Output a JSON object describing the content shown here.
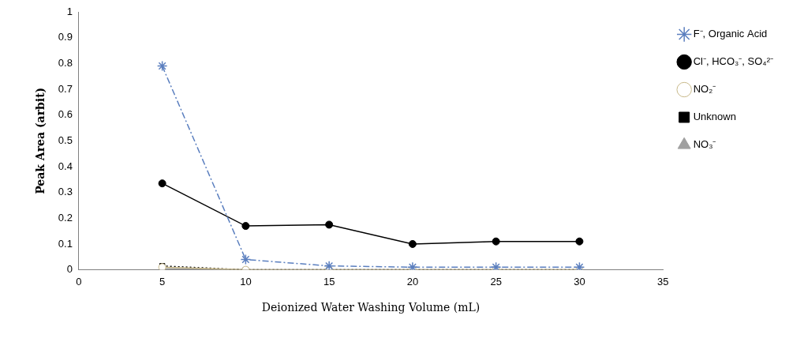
{
  "chart_data": {
    "type": "line",
    "x_label": "Deionized Water Washing Volume (mL)",
    "y_label": "Peak Area (arbit)",
    "x": [
      5,
      10,
      15,
      20,
      25,
      30
    ],
    "xlim": [
      0,
      35
    ],
    "xticks": [
      0,
      5,
      10,
      15,
      20,
      25,
      30,
      35
    ],
    "ylim": [
      0,
      1
    ],
    "yticks": [
      0,
      0.1,
      0.2,
      0.3,
      0.4,
      0.5,
      0.6,
      0.7,
      0.8,
      0.9,
      1
    ],
    "grid": false,
    "legend": "right",
    "series": [
      {
        "name": "F⁻, Organic Acid",
        "color": "#5b7fbf",
        "marker": "star",
        "line_style": "dashdot",
        "values": [
          0.79,
          0.04,
          0.015,
          0.01,
          0.01,
          0.01
        ]
      },
      {
        "name": "Cl⁻, HCO₃⁻, SO₄²⁻",
        "color": "#000000",
        "marker": "circle",
        "line_style": "solid",
        "values": [
          0.335,
          0.17,
          0.175,
          0.1,
          0.11,
          0.11
        ]
      },
      {
        "name": "NO₂⁻",
        "color": "#c8b98a",
        "marker": "open_circle",
        "line_style": "solid",
        "values": [
          0.01,
          0,
          0,
          0,
          0,
          0
        ]
      },
      {
        "name": "Unknown",
        "color": "#000000",
        "marker": "square",
        "line_style": "dotted",
        "values": [
          0.015,
          0,
          0,
          0,
          0,
          0
        ]
      },
      {
        "name": "NO₃⁻",
        "color": "#a0a0a0",
        "marker": "triangle",
        "line_style": "solid",
        "values": [
          0.005,
          0,
          0,
          0,
          0,
          0
        ]
      }
    ]
  }
}
